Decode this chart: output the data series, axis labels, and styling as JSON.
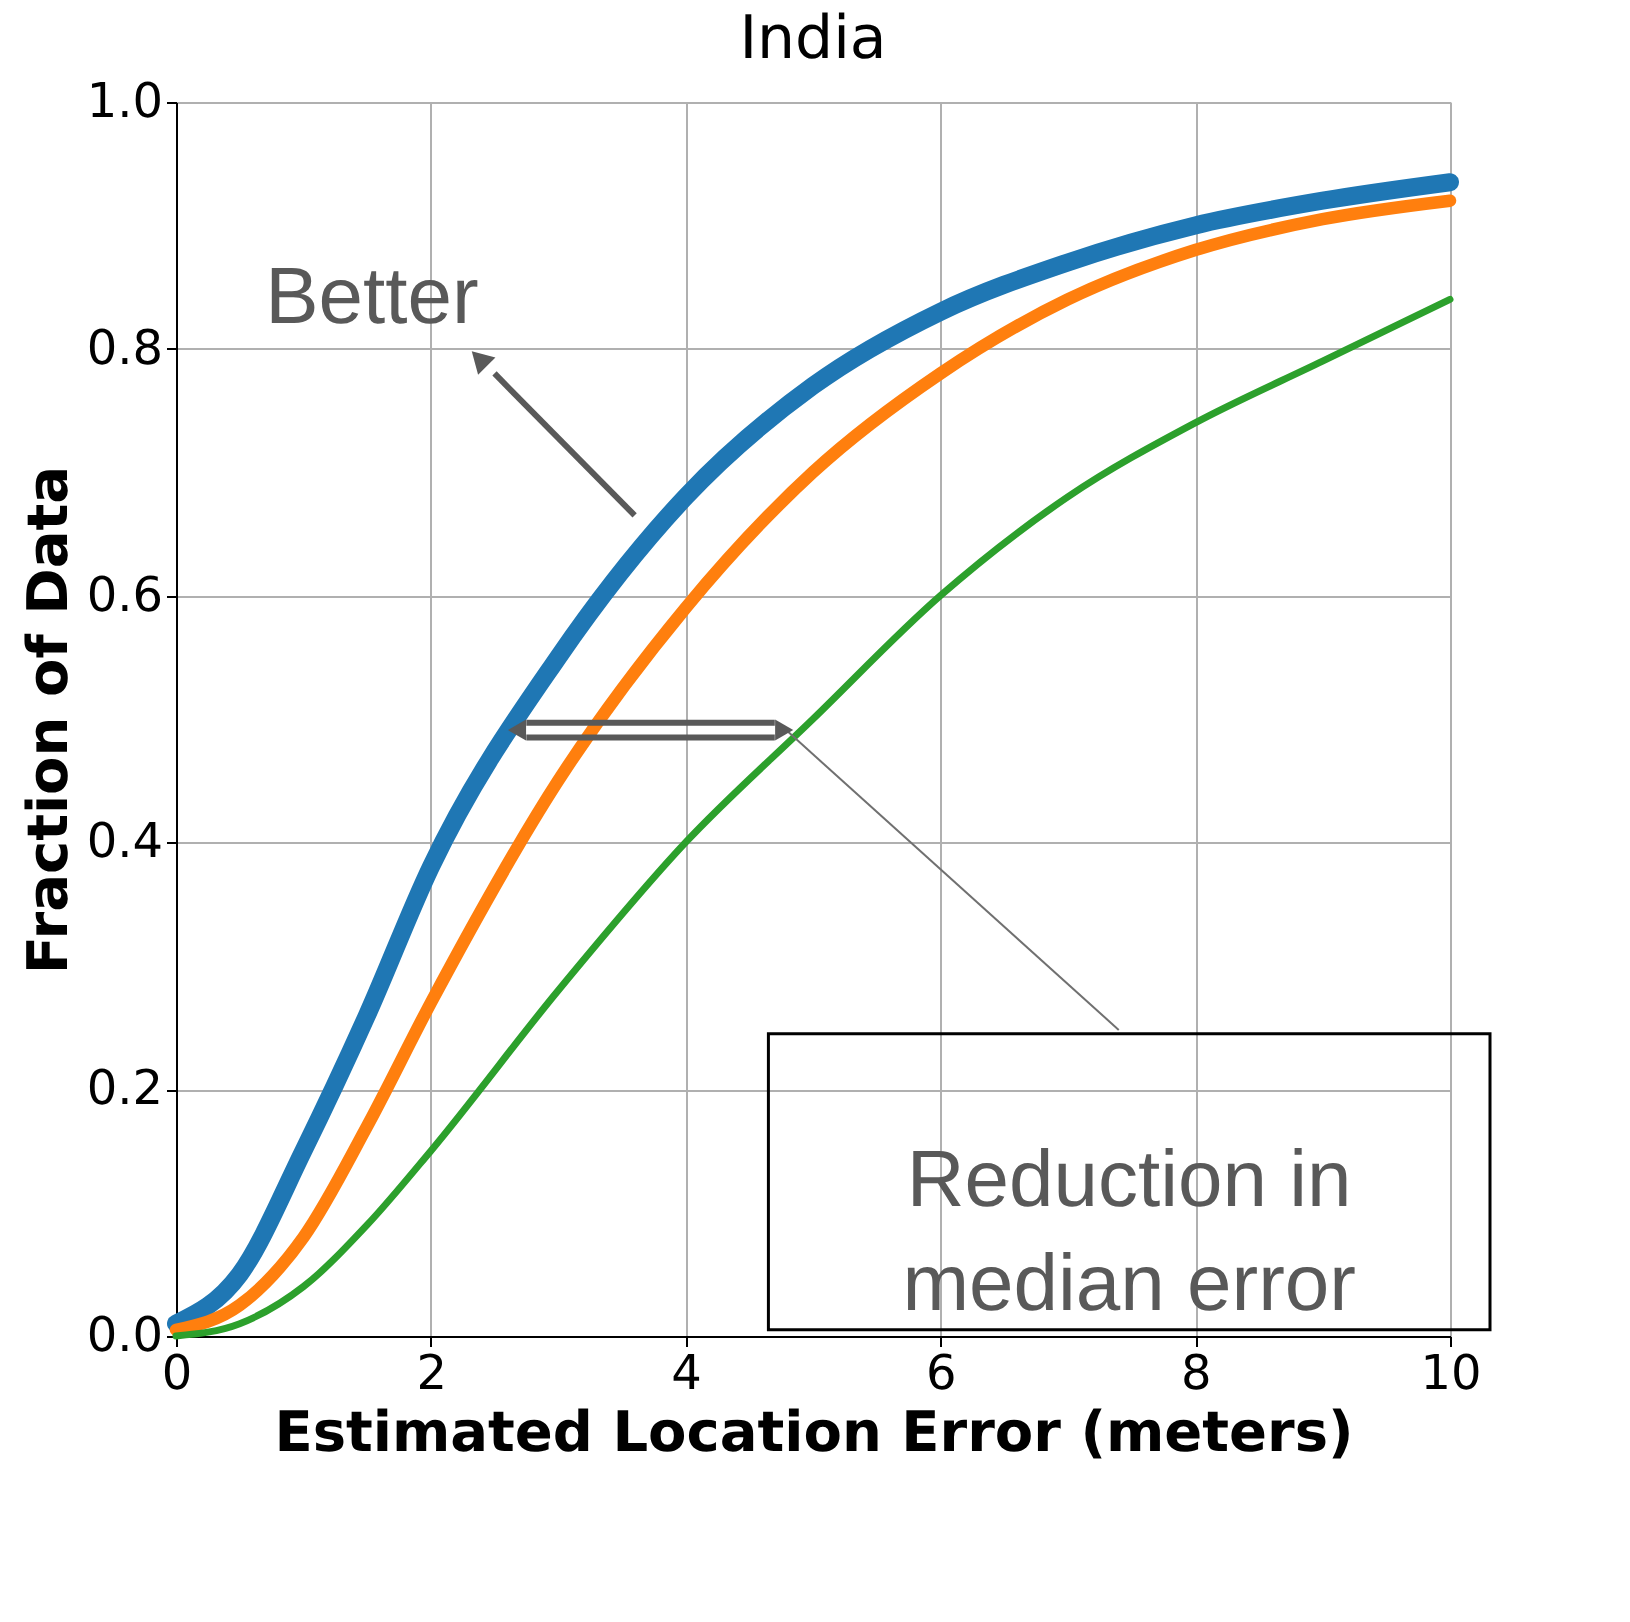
{
  "chart_data": {
    "type": "line",
    "title": "India",
    "xlabel": "Estimated Location Error (meters)",
    "ylabel": "Fraction of Data",
    "x": [
      0,
      0.5,
      1,
      1.5,
      2,
      3,
      4,
      5,
      6,
      7,
      8,
      9,
      10
    ],
    "series": [
      {
        "color": "#1f77b4",
        "values": [
          0.01,
          0.05,
          0.15,
          0.26,
          0.38,
          0.55,
          0.68,
          0.77,
          0.83,
          0.87,
          0.9,
          0.92,
          0.935
        ]
      },
      {
        "color": "#ff7f0e",
        "values": [
          0.005,
          0.025,
          0.08,
          0.17,
          0.27,
          0.45,
          0.59,
          0.7,
          0.78,
          0.84,
          0.88,
          0.905,
          0.92
        ]
      },
      {
        "color": "#2ca02c",
        "values": [
          0,
          0.01,
          0.04,
          0.09,
          0.15,
          0.28,
          0.4,
          0.5,
          0.6,
          0.68,
          0.74,
          0.79,
          0.84
        ]
      }
    ],
    "xlim": [
      0,
      10
    ],
    "ylim": [
      0,
      1
    ],
    "xticks": [
      0,
      2,
      4,
      6,
      8,
      10
    ],
    "yticks": [
      {
        "value": 0,
        "label": "0.0"
      },
      0.2,
      0.4,
      0.6,
      0.8,
      {
        "value": 1,
        "label": "1.0"
      }
    ],
    "grid": true,
    "legend": false,
    "marker": "none",
    "line_style": "solid",
    "annotations": [
      "Better",
      "Reduction in\nmedian error"
    ]
  }
}
